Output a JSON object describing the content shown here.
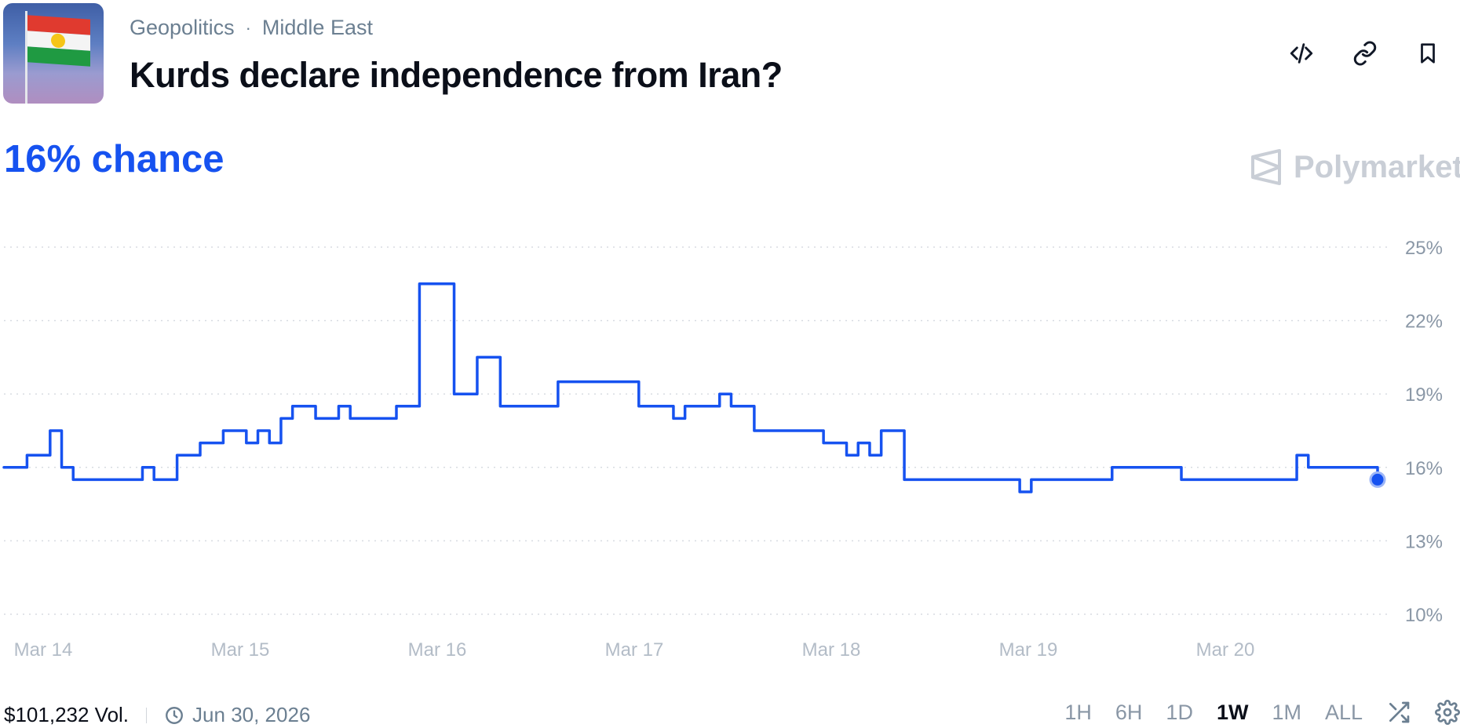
{
  "market": {
    "category": "Geopolitics",
    "subcategory": "Middle East",
    "title": "Kurds declare independence from Iran?",
    "chance_text": "16% chance",
    "brand": "Polymarket",
    "volume": "$101,232 Vol.",
    "end_date": "Jun 30, 2026"
  },
  "icons": {
    "embed": "code-icon",
    "link": "link-icon",
    "bookmark": "bookmark-icon",
    "clock": "clock-icon",
    "shuffle": "shuffle-icon",
    "settings": "gear-icon"
  },
  "colors": {
    "accent": "#1652f0",
    "muted": "#6b7f91",
    "grid": "#d8dce2"
  },
  "time_ranges": [
    "1H",
    "6H",
    "1D",
    "1W",
    "1M",
    "ALL"
  ],
  "active_range": "1W",
  "chart_data": {
    "type": "line",
    "title": "",
    "xlabel": "",
    "ylabel": "",
    "x_ticks": [
      "Mar 14",
      "Mar 15",
      "Mar 16",
      "Mar 17",
      "Mar 18",
      "Mar 19",
      "Mar 20"
    ],
    "y_ticks": [
      "25%",
      "22%",
      "19%",
      "16%",
      "13%",
      "10%"
    ],
    "ylim": [
      10,
      25
    ],
    "grid": true,
    "series": [
      {
        "values": [
          16,
          16,
          16.5,
          16.5,
          17.5,
          16,
          15.5,
          15.5,
          15.5,
          15.5,
          15.5,
          15.5,
          16,
          15.5,
          15.5,
          16.5,
          16.5,
          17,
          17,
          17.5,
          17.5,
          17,
          17.5,
          17,
          18,
          18.5,
          18.5,
          18,
          18,
          18.5,
          18,
          18,
          18,
          18,
          18.5,
          18.5,
          23.5,
          23.5,
          23.5,
          19,
          19,
          20.5,
          20.5,
          18.5,
          18.5,
          18.5,
          18.5,
          18.5,
          19.5,
          19.5,
          19.5,
          19.5,
          19.5,
          19.5,
          19.5,
          18.5,
          18.5,
          18.5,
          18,
          18.5,
          18.5,
          18.5,
          19,
          18.5,
          18.5,
          17.5,
          17.5,
          17.5,
          17.5,
          17.5,
          17.5,
          17,
          17,
          16.5,
          17,
          16.5,
          17.5,
          17.5,
          15.5,
          15.5,
          15.5,
          15.5,
          15.5,
          15.5,
          15.5,
          15.5,
          15.5,
          15.5,
          15,
          15.5,
          15.5,
          15.5,
          15.5,
          15.5,
          15.5,
          15.5,
          16,
          16,
          16,
          16,
          16,
          16,
          15.5,
          15.5,
          15.5,
          15.5,
          15.5,
          15.5,
          15.5,
          15.5,
          15.5,
          15.5,
          16.5,
          16,
          16,
          16,
          16,
          16,
          16,
          15.5
        ]
      }
    ]
  }
}
